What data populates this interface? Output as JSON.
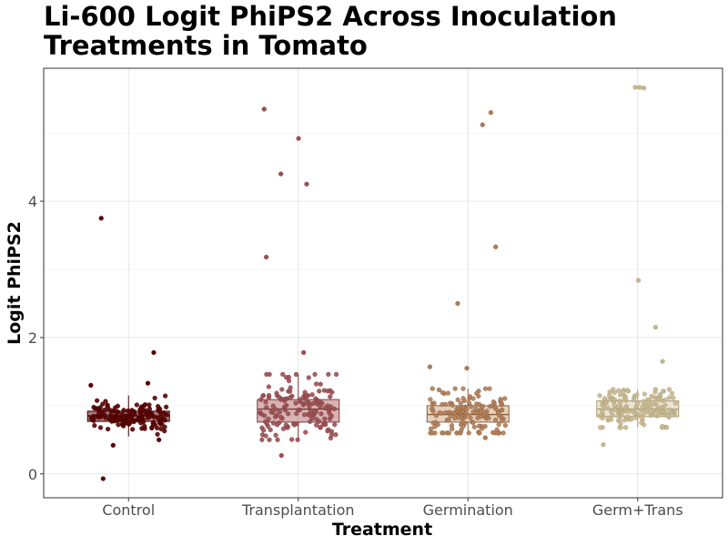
{
  "chart_data": {
    "type": "box",
    "title_lines": [
      "Li-600 Logit PhiPS2 Across Inoculation",
      "Treatments in Tomato"
    ],
    "xlabel": "Treatment",
    "ylabel": "Logit PhiPS2",
    "categories": [
      "Control",
      "Transplantation",
      "Germination",
      "Germ+Trans"
    ],
    "ylim": [
      -0.35,
      5.95
    ],
    "yticks": [
      0,
      2,
      4
    ],
    "grid": true,
    "legend": "none",
    "colors": {
      "Control": {
        "fill": "#8b4a4a",
        "point": "#5c0000",
        "line": "#3a0000"
      },
      "Transplantation": {
        "fill": "#c99a9a",
        "point": "#9c4f52",
        "line": "#7a3a3c"
      },
      "Germination": {
        "fill": "#dcc0a4",
        "point": "#b07d56",
        "line": "#8a5e3e"
      },
      "Germ+Trans": {
        "fill": "#e4dcc6",
        "point": "#c5b790",
        "line": "#a89a72"
      }
    },
    "boxes": [
      {
        "category": "Control",
        "q1": 0.77,
        "median": 0.85,
        "q3": 0.92,
        "whisker_low": 0.55,
        "whisker_high": 1.15,
        "outliers": [
          3.75,
          1.78,
          -0.07,
          1.3,
          1.33,
          0.42,
          0.5
        ]
      },
      {
        "category": "Transplantation",
        "q1": 0.76,
        "median": 0.95,
        "q3": 1.09,
        "whisker_low": 0.5,
        "whisker_high": 1.46,
        "outliers": [
          5.35,
          4.92,
          4.4,
          4.25,
          3.18,
          1.78,
          0.27
        ]
      },
      {
        "category": "Germination",
        "q1": 0.76,
        "median": 0.87,
        "q3": 1.0,
        "whisker_low": 0.6,
        "whisker_high": 1.25,
        "outliers": [
          5.3,
          5.12,
          3.33,
          2.5,
          1.55,
          1.57,
          0.53
        ]
      },
      {
        "category": "Germ+Trans",
        "q1": 0.84,
        "median": 0.95,
        "q3": 1.07,
        "whisker_low": 0.68,
        "whisker_high": 1.24,
        "outliers": [
          5.67,
          5.67,
          5.66,
          2.84,
          2.15,
          1.65,
          0.43
        ]
      }
    ]
  }
}
